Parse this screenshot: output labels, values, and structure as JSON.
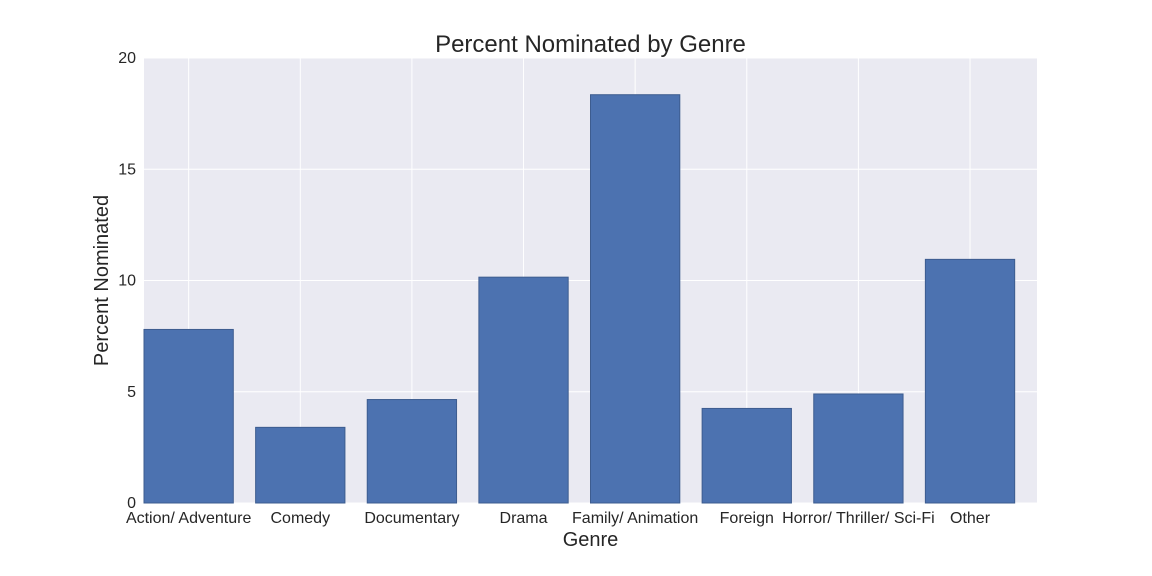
{
  "chart_data": {
    "type": "bar",
    "title": "Percent Nominated by Genre",
    "xlabel": "Genre",
    "ylabel": "Percent Nominated",
    "categories": [
      "Action/ Adventure",
      "Comedy",
      "Documentary",
      "Drama",
      "Family/ Animation",
      "Foreign",
      "Horror/ Thriller/ Sci-Fi",
      "Other"
    ],
    "values": [
      7.8,
      3.4,
      4.65,
      10.15,
      18.35,
      4.25,
      4.9,
      10.95
    ],
    "ylim": [
      0,
      20
    ],
    "yticks": [
      "0",
      "5",
      "10",
      "15",
      "20"
    ],
    "grid": true,
    "colors": {
      "bar": "#4c72b0",
      "bar_edge": "#3d5c8f",
      "plot_background": "#eaeaf2",
      "grid": "#ffffff"
    }
  }
}
